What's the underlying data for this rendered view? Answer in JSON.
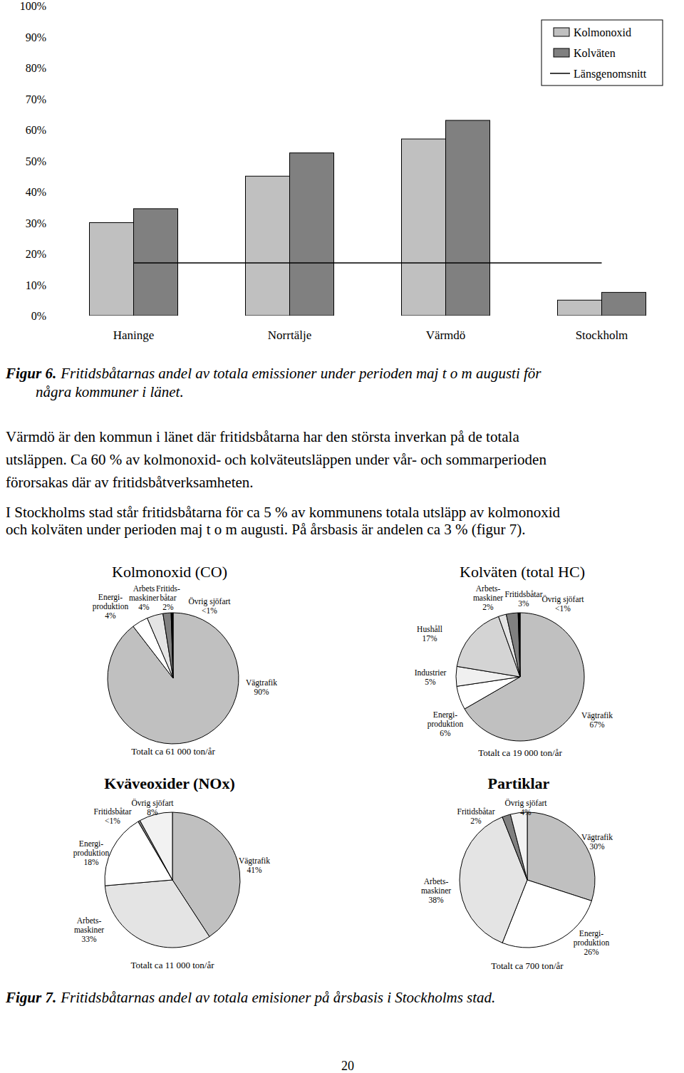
{
  "chart_data": [
    {
      "type": "bar",
      "categories": [
        "Haninge",
        "Norrtälje",
        "Värmdö",
        "Stockholm"
      ],
      "series": [
        {
          "name": "Kolmonoxid",
          "color": "#c0c0c0",
          "values": [
            30,
            45,
            57,
            5
          ]
        },
        {
          "name": "Kolväten",
          "color": "#808080",
          "values": [
            34.5,
            52.5,
            63,
            7.5
          ]
        },
        {
          "name": "Länsgenomsnitt",
          "type": "line",
          "color": "#000000",
          "values": [
            17,
            17,
            17,
            17
          ]
        }
      ],
      "ylim": [
        0,
        100
      ],
      "yticks": [
        {
          "value": 0,
          "label": "0%"
        },
        {
          "value": 10,
          "label": "10%"
        },
        {
          "value": 20,
          "label": "20%"
        },
        {
          "value": 30,
          "label": "30%"
        },
        {
          "value": 40,
          "label": "40%"
        },
        {
          "value": 50,
          "label": "50%"
        },
        {
          "value": 60,
          "label": "60%"
        },
        {
          "value": 70,
          "label": "70%"
        },
        {
          "value": 80,
          "label": "80%"
        },
        {
          "value": 90,
          "label": "90%"
        },
        {
          "value": 100,
          "label": "100%"
        }
      ],
      "grid": false,
      "legend": "upper right"
    },
    {
      "type": "pie",
      "title": "Kolmonoxid (CO)",
      "subtitle": "Totalt ca 61 000 ton/år",
      "categories": [
        "Vägtrafik",
        "Energi-\nproduktion",
        "Arbets\nmaskiner",
        "Fritids-\nbåtar",
        "Övrig sjöfart"
      ],
      "values": [
        90,
        4,
        4,
        2,
        0.5
      ],
      "value_labels": [
        "90%",
        "4%",
        "4%",
        "2%",
        "<1%"
      ],
      "colors": [
        "#c0c0c0",
        "#ffffff",
        "#e4e4e4",
        "#808080",
        "#000000"
      ],
      "data_labels": true
    },
    {
      "type": "pie",
      "title": "Kolväten (total HC)",
      "subtitle": "Totalt ca 19 000 ton/år",
      "categories": [
        "Vägtrafik",
        "Energi-\nproduktion",
        "Industrier",
        "Hushåll",
        "Arbets-\nmaskiner",
        "Fritidsbåtar",
        "Övrig sjöfart"
      ],
      "values": [
        67,
        6,
        5,
        17,
        2,
        3,
        0.5
      ],
      "value_labels": [
        "67%",
        "6%",
        "5%",
        "17%",
        "2%",
        "3%",
        "<1%"
      ],
      "colors": [
        "#c0c0c0",
        "#ffffff",
        "#f0f0f0",
        "#d4d4d4",
        "#e4e4e4",
        "#808080",
        "#000000"
      ],
      "data_labels": true
    },
    {
      "type": "pie",
      "title": "Kväveoxider (NOx)",
      "subtitle": "Totalt ca 11 000 ton/år",
      "categories": [
        "Vägtrafik",
        "Arbets-\nmaskiner",
        "Energi-\nproduktion",
        "Fritidsbåtar",
        "Övrig sjöfart"
      ],
      "values": [
        41,
        33,
        18,
        0.5,
        8
      ],
      "value_labels": [
        "41%",
        "33%",
        "18%",
        "<1%",
        "8%"
      ],
      "colors": [
        "#c0c0c0",
        "#e4e4e4",
        "#ffffff",
        "#808080",
        "#f2f2f2"
      ],
      "data_labels": true
    },
    {
      "type": "pie",
      "title": "Partiklar",
      "subtitle": "Totalt ca 700 ton/år",
      "categories": [
        "Vägtrafik",
        "Energi-\nproduktion",
        "Arbets-\nmaskiner",
        "Fritidsbåtar",
        "Övrig sjöfart"
      ],
      "values": [
        30,
        26,
        38,
        2,
        4
      ],
      "value_labels": [
        "30%",
        "26%",
        "38%",
        "2%",
        "4%"
      ],
      "colors": [
        "#c0c0c0",
        "#ffffff",
        "#e4e4e4",
        "#808080",
        "#f2f2f2"
      ],
      "data_labels": true
    }
  ],
  "page": {
    "figure6_caption": {
      "label": "Figur 6.",
      "lines": [
        "Fritidsbåtarnas andel av totala emissioner under perioden maj t o m augusti för",
        "några kommuner i länet."
      ]
    },
    "paragraphs": [
      [
        "Värmdö är den kommun i länet där fritidsbåtarna har den största inverkan på de totala",
        "utsläppen. Ca 60 % av kolmonoxid- och kolväteutsläppen under vår- och sommarperioden",
        "förorsakas där av fritidsbåtverksamheten."
      ],
      [
        "I Stockholms stad står fritidsbåtarna för ca 5 % av kommunens totala utsläpp av kolmonoxid",
        "och kolväten under perioden maj t o m augusti. På årsbasis är andelen ca 3 % (figur 7)."
      ]
    ],
    "figure7_caption": {
      "label": "Figur 7.",
      "lines": [
        "Fritidsbåtarnas andel av totala emisioner på årsbasis i Stockholms stad."
      ]
    },
    "page_number": "20"
  }
}
